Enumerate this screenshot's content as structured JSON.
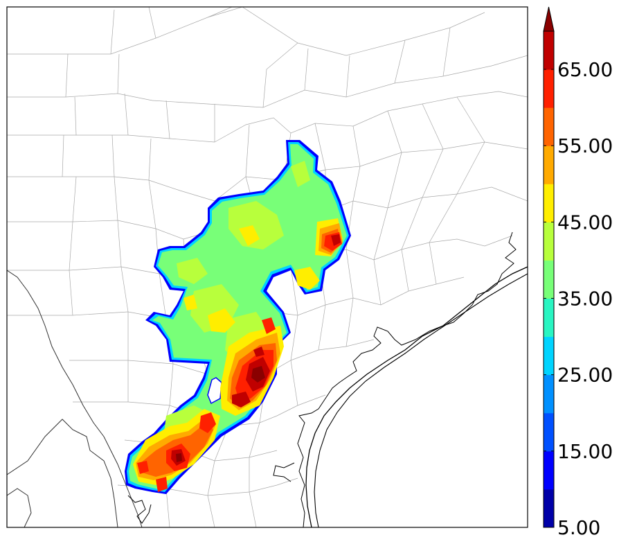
{
  "map": {
    "region": "South-central Texas county map with coastline",
    "field_colormap": "jet"
  },
  "colorbar": {
    "colors": [
      "#0000a8",
      "#0000ff",
      "#0050ff",
      "#0090ff",
      "#00d4ff",
      "#29f5c2",
      "#78ff78",
      "#b8ff3c",
      "#ffee00",
      "#ffaa00",
      "#ff6400",
      "#ff2000",
      "#c00000",
      "#8a0000"
    ],
    "extend": "max",
    "tick_labels": [
      "5.00",
      "15.00",
      "25.00",
      "35.00",
      "45.00",
      "55.00",
      "65.00"
    ],
    "tick_values": [
      5,
      15,
      25,
      35,
      45,
      55,
      65
    ],
    "vmin": 5,
    "vmax": 70,
    "level_step": 5
  }
}
